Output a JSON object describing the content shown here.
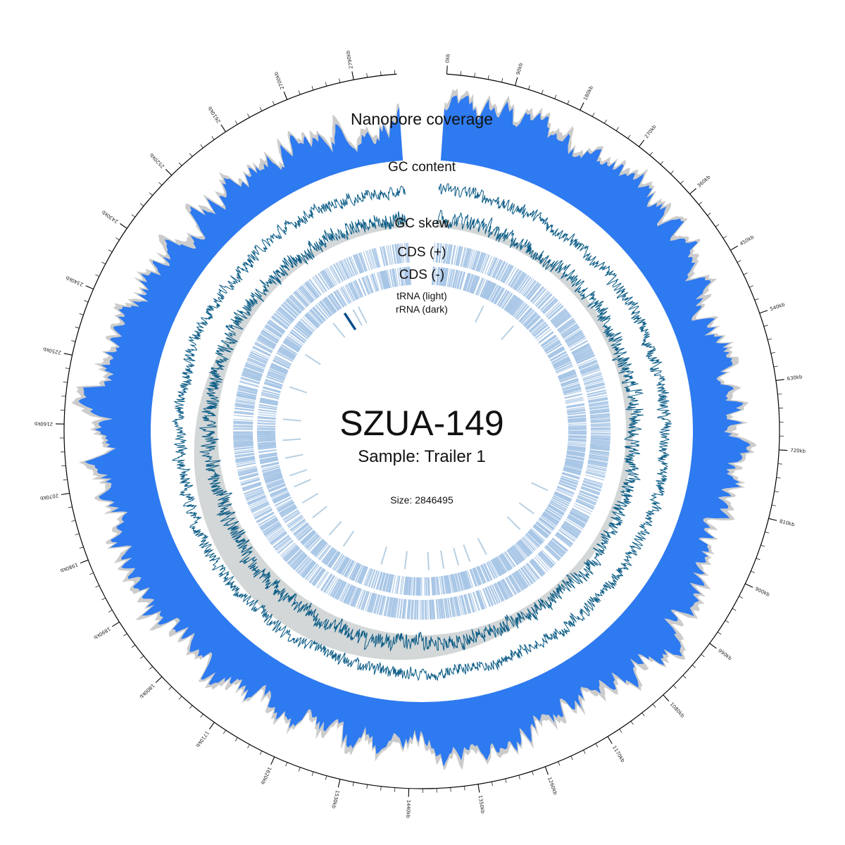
{
  "genome": {
    "name": "SZUA-149",
    "sample": "Sample: Trailer 1",
    "size_label": "Size: 2846495",
    "size_bp": 2846495
  },
  "track_labels": {
    "coverage": "Nanopore coverage",
    "gc_content": "GC content",
    "gc_skew": "GC skew",
    "cds_plus": "CDS (+)",
    "cds_minus": "CDS (-)",
    "trna": "tRNA (light)",
    "rrna": "rRNA (dark)"
  },
  "colors": {
    "coverage": "#2e7af0",
    "coverage_shadow": "#cccccc",
    "gc": "#0a5b85",
    "cds": "#a8c6e6",
    "trna": "#b8d0e2",
    "rrna": "#0c4f8c",
    "inner_shade": "#d3d7d8"
  },
  "chart_data": {
    "type": "circular-genome",
    "units": "kb",
    "major_tick_labels": [
      "0kb",
      "90kb",
      "180kb",
      "270kb",
      "360kb",
      "450kb",
      "540kb",
      "630kb",
      "720kb",
      "810kb",
      "900kb",
      "990kb",
      "1080kb",
      "1170kb",
      "1260kb",
      "1350kb",
      "1440kb",
      "1530kb",
      "1620kb",
      "1710kb",
      "1800kb",
      "1890kb",
      "1980kb",
      "2070kb",
      "2160kb",
      "2250kb",
      "2340kb",
      "2430kb",
      "2520kb",
      "2610kb",
      "2700kb",
      "2790kb"
    ],
    "rrna_positions_kb": [
      2610
    ],
    "trna_positions_kb": [
      180,
      300,
      900,
      990,
      1060,
      1200,
      1260,
      1300,
      1350,
      1400,
      1480,
      1560,
      1700,
      1760,
      1840,
      1900,
      1960,
      2000,
      2060,
      2120,
      2190,
      2300,
      2420,
      2560,
      2640,
      2660
    ]
  }
}
